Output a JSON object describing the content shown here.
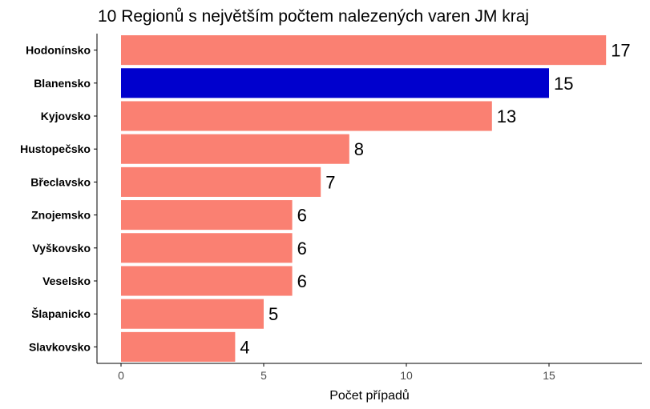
{
  "chart_data": {
    "type": "bar",
    "orientation": "horizontal",
    "title": "10 Regionů s největším počtem nalezených varen JM kraj",
    "xlabel": "Počet případů",
    "ylabel": "",
    "categories": [
      "Hodonínsko",
      "Blanensko",
      "Kyjovsko",
      "Hustopečsko",
      "Břeclavsko",
      "Znojemsko",
      "Vyškovsko",
      "Veselsko",
      "Šlapanicko",
      "Slavkovsko"
    ],
    "values": [
      17,
      15,
      13,
      8,
      7,
      6,
      6,
      6,
      5,
      4
    ],
    "highlight": "Blanensko",
    "xlim": [
      0,
      18
    ],
    "xticks": [
      0,
      5,
      10,
      15
    ],
    "grid": false,
    "legend": "none",
    "colors": {
      "default": "#fa8072",
      "highlight": "#0000cd",
      "axis": "#000000",
      "tick_text": "#4d4d4d"
    }
  }
}
